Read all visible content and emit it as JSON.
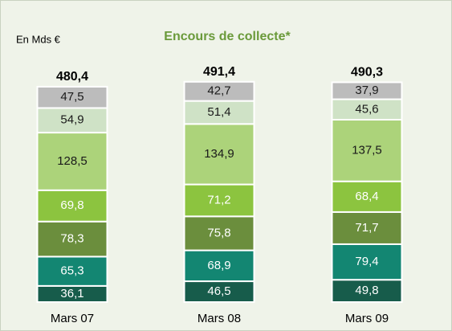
{
  "chart_data": {
    "type": "stacked_bar",
    "title": "Encours de collecte*",
    "unit_label": "En Mds  €",
    "categories": [
      "Mars 07",
      "Mars 08",
      "Mars 09"
    ],
    "series": [
      {
        "color": "#175c4b",
        "label_color": "#ffffff",
        "values": [
          36.1,
          46.5,
          49.8
        ],
        "value_labels": [
          "36,1",
          "46,5",
          "49,8"
        ]
      },
      {
        "color": "#138672",
        "label_color": "#ffffff",
        "values": [
          65.3,
          68.9,
          79.4
        ],
        "value_labels": [
          "65,3",
          "68,9",
          "79,4"
        ]
      },
      {
        "color": "#6b8e3d",
        "label_color": "#ffffff",
        "values": [
          78.3,
          75.8,
          71.7
        ],
        "value_labels": [
          "78,3",
          "75,8",
          "71,7"
        ]
      },
      {
        "color": "#8cc43f",
        "label_color": "#ffffff",
        "values": [
          69.8,
          71.2,
          68.4
        ],
        "value_labels": [
          "69,8",
          "71,2",
          "68,4"
        ]
      },
      {
        "color": "#acd37a",
        "label_color": "#1a1a1a",
        "values": [
          128.5,
          134.9,
          137.5
        ],
        "value_labels": [
          "128,5",
          "134,9",
          "137,5"
        ]
      },
      {
        "color": "#cfe2c6",
        "label_color": "#1a1a1a",
        "values": [
          54.9,
          51.4,
          45.6
        ],
        "value_labels": [
          "54,9",
          "51,4",
          "45,6"
        ]
      },
      {
        "color": "#bcbcbc",
        "label_color": "#1a1a1a",
        "values": [
          47.5,
          42.7,
          37.9
        ],
        "value_labels": [
          "47,5",
          "42,7",
          "37,9"
        ]
      }
    ],
    "totals": [
      480.4,
      491.4,
      490.3
    ],
    "total_labels": [
      "480,4",
      "491,4",
      "490,3"
    ],
    "title_color": "#6a9a3a"
  }
}
